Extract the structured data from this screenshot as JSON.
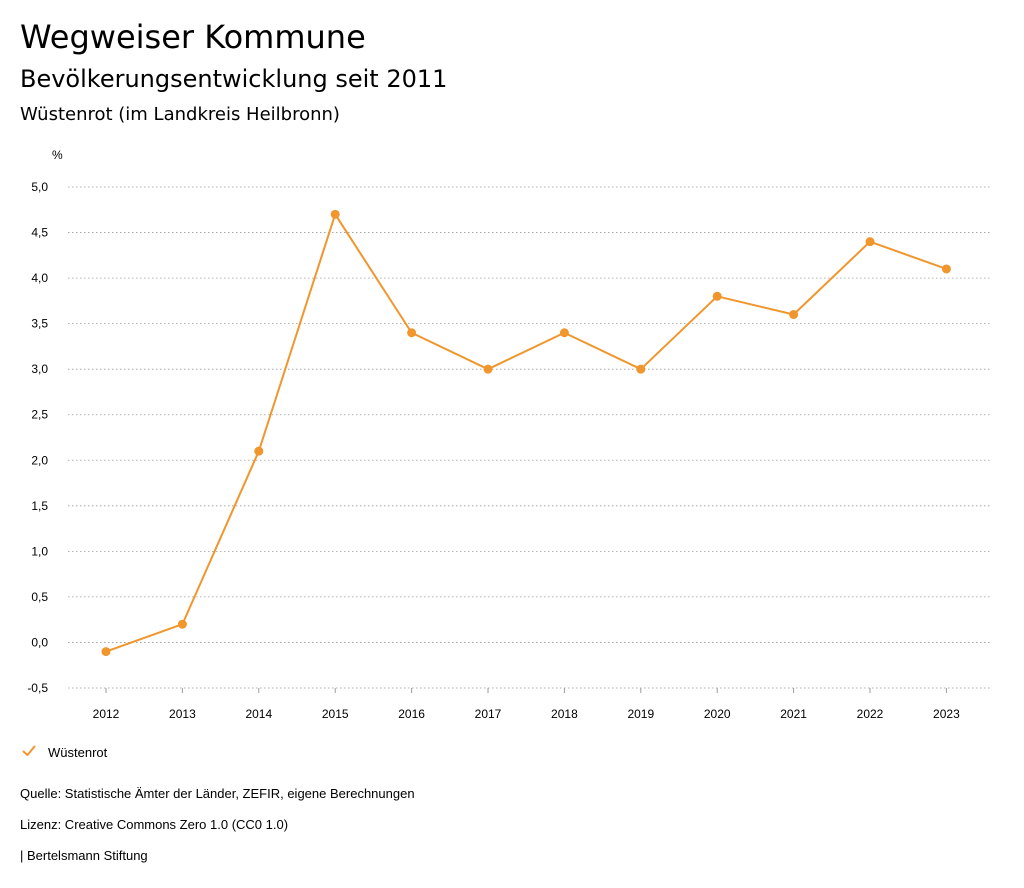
{
  "header": {
    "title": "Wegweiser Kommune",
    "subtitle": "Bevölkerungsentwicklung seit 2011",
    "region": "Wüstenrot (im Landkreis Heilbronn)"
  },
  "chart_data": {
    "type": "line",
    "title": "Bevölkerungsentwicklung seit 2011",
    "ylabel": "%",
    "xlabel": "",
    "ylim": [
      -0.5,
      5.0
    ],
    "yticks": [
      "-0,5",
      "0,0",
      "0,5",
      "1,0",
      "1,5",
      "2,0",
      "2,5",
      "3,0",
      "3,5",
      "4,0",
      "4,5",
      "5,0"
    ],
    "yticks_values": [
      -0.5,
      0.0,
      0.5,
      1.0,
      1.5,
      2.0,
      2.5,
      3.0,
      3.5,
      4.0,
      4.5,
      5.0
    ],
    "categories": [
      "2012",
      "2013",
      "2014",
      "2015",
      "2016",
      "2017",
      "2018",
      "2019",
      "2020",
      "2021",
      "2022",
      "2023"
    ],
    "series": [
      {
        "name": "Wüstenrot",
        "color": "#f0962d",
        "values": [
          -0.1,
          0.2,
          2.1,
          4.7,
          3.4,
          3.0,
          3.4,
          3.0,
          3.8,
          3.6,
          4.4,
          4.1
        ]
      }
    ],
    "grid": true,
    "legend": "bottom-left"
  },
  "legend": {
    "label": "Wüstenrot",
    "icon": "check-icon"
  },
  "footer": {
    "source": "Quelle: Statistische Ämter der Länder, ZEFIR, eigene Berechnungen",
    "license": "Lizenz: Creative Commons Zero 1.0 (CC0 1.0)",
    "publisher": "| Bertelsmann Stiftung"
  }
}
